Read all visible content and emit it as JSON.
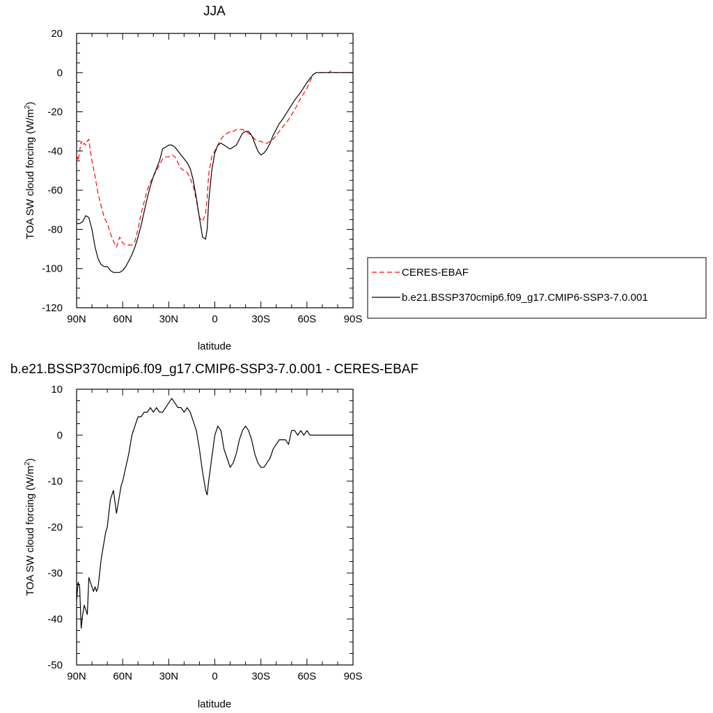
{
  "chart_data": [
    {
      "type": "line",
      "title": "JJA",
      "xlabel": "latitude",
      "ylabel": "TOA SW cloud forcing (W/m",
      "ylabel_sup": "2",
      "ylabel_close": ")",
      "xlim": [
        90,
        -90
      ],
      "ylim": [
        -120,
        20
      ],
      "xticks": [
        {
          "value": 90,
          "label": "90N"
        },
        {
          "value": 60,
          "label": "60N"
        },
        {
          "value": 30,
          "label": "30N"
        },
        {
          "value": 0,
          "label": "0"
        },
        {
          "value": -30,
          "label": "30S"
        },
        {
          "value": -60,
          "label": "60S"
        },
        {
          "value": -90,
          "label": "90S"
        }
      ],
      "yticks": [
        {
          "value": 20,
          "label": "20"
        },
        {
          "value": 0,
          "label": "0"
        },
        {
          "value": -20,
          "label": "-20"
        },
        {
          "value": -40,
          "label": "-40"
        },
        {
          "value": -60,
          "label": "-60"
        },
        {
          "value": -80,
          "label": "-80"
        },
        {
          "value": -100,
          "label": "-100"
        },
        {
          "value": -120,
          "label": "-120"
        }
      ],
      "legend_position": "right",
      "series": [
        {
          "name": "CERES-EBAF",
          "color": "#ff0000",
          "dashed": true,
          "x": [
            90,
            89,
            88,
            87,
            86,
            85,
            84,
            83,
            82,
            81,
            80,
            78,
            76,
            74,
            72,
            70,
            68,
            66,
            64,
            62,
            61,
            60,
            58,
            56,
            54,
            52,
            50,
            48,
            46,
            44,
            42,
            40,
            38,
            36,
            34,
            32,
            30,
            28,
            26,
            24,
            22,
            20,
            18,
            16,
            14,
            12,
            10,
            8,
            6,
            5,
            4,
            2,
            0,
            -2,
            -4,
            -6,
            -8,
            -10,
            -12,
            -14,
            -16,
            -18,
            -20,
            -22,
            -24,
            -26,
            -28,
            -30,
            -32,
            -34,
            -36,
            -38,
            -40,
            -44,
            -48,
            -52,
            -56,
            -60,
            -64,
            -66,
            -68,
            -70,
            -72,
            -74,
            -76,
            -78,
            -80,
            -84,
            -88,
            -90
          ],
          "y": [
            -42,
            -45,
            -40,
            -35,
            -37,
            -36,
            -37,
            -35,
            -34,
            -40,
            -45,
            -53,
            -62,
            -68,
            -74,
            -77,
            -82,
            -86,
            -89,
            -84,
            -85,
            -87,
            -88,
            -88,
            -88,
            -86,
            -80,
            -72,
            -66,
            -60,
            -56,
            -53,
            -50,
            -47,
            -44,
            -43,
            -43,
            -42,
            -43,
            -46,
            -49,
            -50,
            -51,
            -54,
            -58,
            -65,
            -74,
            -76,
            -72,
            -64,
            -52,
            -43,
            -40,
            -37,
            -34,
            -32,
            -31,
            -30,
            -30,
            -29,
            -29,
            -29,
            -30,
            -31,
            -32,
            -34,
            -35,
            -35,
            -36,
            -36,
            -35,
            -34,
            -32,
            -28,
            -24,
            -19,
            -13,
            -8,
            -1,
            0,
            0,
            0,
            0,
            0,
            1,
            0,
            0,
            0,
            0,
            0
          ]
        },
        {
          "name": "b.e21.BSSP370cmip6.f09_g17.CMIP6-SSP3-7.0.001",
          "color": "#000000",
          "dashed": false,
          "x": [
            90,
            88,
            86,
            84,
            82,
            80,
            78,
            76,
            74,
            72,
            70,
            68,
            66,
            64,
            62,
            60,
            58,
            56,
            54,
            52,
            50,
            48,
            46,
            44,
            42,
            40,
            38,
            36,
            34,
            32,
            30,
            28,
            26,
            24,
            22,
            20,
            18,
            16,
            14,
            12,
            10,
            8,
            6,
            5,
            4,
            2,
            0,
            -2,
            -4,
            -6,
            -8,
            -10,
            -12,
            -14,
            -16,
            -18,
            -20,
            -22,
            -24,
            -26,
            -28,
            -30,
            -32,
            -34,
            -36,
            -38,
            -40,
            -42,
            -44,
            -48,
            -52,
            -56,
            -60,
            -64,
            -66,
            -68,
            -70,
            -72,
            -74,
            -76,
            -78,
            -80,
            -84,
            -88,
            -90
          ],
          "y": [
            -77,
            -77,
            -76,
            -73,
            -74,
            -80,
            -89,
            -95,
            -98,
            -99,
            -99,
            -101,
            -102,
            -102,
            -102,
            -101,
            -99,
            -96,
            -93,
            -89,
            -84,
            -78,
            -71,
            -64,
            -58,
            -53,
            -49,
            -45,
            -39,
            -38,
            -37,
            -37,
            -38,
            -40,
            -42,
            -44,
            -46,
            -49,
            -55,
            -64,
            -74,
            -84,
            -85,
            -80,
            -66,
            -50,
            -41,
            -37,
            -36,
            -37,
            -38,
            -39,
            -38,
            -37,
            -34,
            -31,
            -30,
            -30,
            -32,
            -36,
            -40,
            -42,
            -41,
            -39,
            -36,
            -32,
            -29,
            -26,
            -24,
            -19,
            -14,
            -10,
            -5,
            -1,
            0,
            0,
            0,
            0,
            0,
            0,
            0,
            0,
            0,
            0,
            0
          ]
        }
      ]
    },
    {
      "type": "line",
      "title": "b.e21.BSSP370cmip6.f09_g17.CMIP6-SSP3-7.0.001 - CERES-EBAF",
      "xlabel": "latitude",
      "ylabel": "TOA SW cloud forcing (W/m",
      "ylabel_sup": "2",
      "ylabel_close": ")",
      "xlim": [
        90,
        -90
      ],
      "ylim": [
        -50,
        10
      ],
      "xticks": [
        {
          "value": 90,
          "label": "90N"
        },
        {
          "value": 60,
          "label": "60N"
        },
        {
          "value": 30,
          "label": "30N"
        },
        {
          "value": 0,
          "label": "0"
        },
        {
          "value": -30,
          "label": "30S"
        },
        {
          "value": -60,
          "label": "60S"
        },
        {
          "value": -90,
          "label": "90S"
        }
      ],
      "yticks": [
        {
          "value": 10,
          "label": "10"
        },
        {
          "value": 0,
          "label": "0"
        },
        {
          "value": -10,
          "label": "-10"
        },
        {
          "value": -20,
          "label": "-20"
        },
        {
          "value": -30,
          "label": "-30"
        },
        {
          "value": -40,
          "label": "-40"
        },
        {
          "value": -50,
          "label": "-50"
        }
      ],
      "series": [
        {
          "color": "#000000",
          "dashed": false,
          "x": [
            90,
            89,
            88,
            87,
            86,
            85,
            84,
            83,
            82,
            81,
            80,
            79,
            78,
            77,
            76,
            75,
            74,
            73,
            72,
            71,
            70,
            68,
            66,
            64,
            62,
            61,
            60,
            58,
            56,
            54,
            52,
            50,
            48,
            46,
            44,
            42,
            40,
            38,
            36,
            34,
            32,
            30,
            28,
            26,
            24,
            22,
            20,
            18,
            16,
            14,
            12,
            10,
            8,
            6,
            5,
            4,
            2,
            0,
            -2,
            -4,
            -6,
            -8,
            -10,
            -12,
            -14,
            -16,
            -18,
            -20,
            -22,
            -24,
            -26,
            -28,
            -30,
            -32,
            -34,
            -36,
            -38,
            -40,
            -42,
            -44,
            -46,
            -48,
            -50,
            -52,
            -54,
            -56,
            -58,
            -60,
            -62,
            -64,
            -66,
            -68,
            -70,
            -72,
            -74,
            -76,
            -78,
            -80,
            -84,
            -88,
            -90
          ],
          "y": [
            -36,
            -32,
            -33,
            -42,
            -39,
            -37,
            -38,
            -39,
            -31,
            -32,
            -33,
            -34,
            -33,
            -34,
            -33,
            -30,
            -27,
            -25,
            -23,
            -21,
            -20,
            -14,
            -12,
            -17,
            -13,
            -11,
            -10,
            -7,
            -4,
            0,
            2,
            4,
            4,
            5,
            5,
            6,
            5,
            6,
            5,
            5,
            6,
            7,
            8,
            7,
            6,
            6,
            5,
            6,
            5,
            3,
            1,
            -3,
            -8,
            -12,
            -13,
            -10,
            -5,
            0,
            2,
            1,
            -3,
            -5,
            -7,
            -6,
            -4,
            -1,
            1,
            2,
            1,
            -1,
            -4,
            -6,
            -7,
            -7,
            -6,
            -5,
            -3,
            -2,
            -1,
            -1,
            -1,
            -2,
            1,
            1,
            0,
            1,
            0,
            1,
            0,
            0,
            0,
            0,
            0,
            0,
            0,
            0,
            0,
            0,
            0,
            0,
            0
          ]
        }
      ]
    }
  ]
}
